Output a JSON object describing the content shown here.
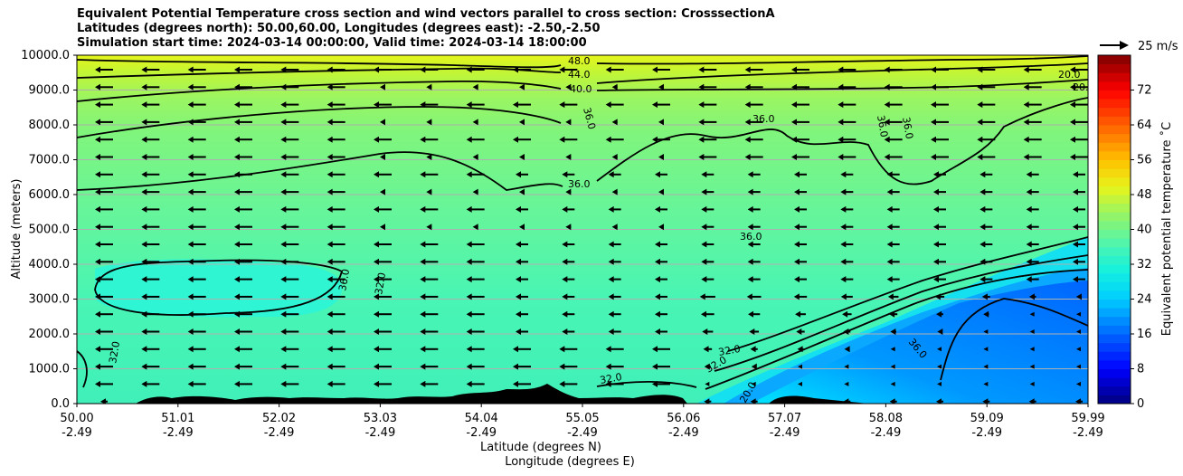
{
  "title_lines": [
    "Equivalent Potential Temperature cross section and wind vectors parallel to cross section: CrosssectionA",
    "Latitudes (degrees north): 50.00,60.00, Longitudes (degrees east): -2.50,-2.50",
    "Simulation start time: 2024-03-14 00:00:00, Valid time: 2024-03-14 18:00:00"
  ],
  "chart_data": {
    "type": "contour",
    "ylabel": "Altitude (meters)",
    "xlabel_lines": [
      "Latitude (degrees N)",
      "Longitude (degrees E)"
    ],
    "y_ticks": [
      "0.0",
      "1000.0",
      "2000.0",
      "3000.0",
      "4000.0",
      "5000.0",
      "6000.0",
      "7000.0",
      "8000.0",
      "9000.0",
      "10000.0"
    ],
    "ylim": [
      0,
      10000
    ],
    "x_ticks": [
      {
        "lat": "50.00",
        "lon": "-2.49"
      },
      {
        "lat": "51.01",
        "lon": "-2.49"
      },
      {
        "lat": "52.02",
        "lon": "-2.49"
      },
      {
        "lat": "53.03",
        "lon": "-2.49"
      },
      {
        "lat": "54.04",
        "lon": "-2.49"
      },
      {
        "lat": "55.05",
        "lon": "-2.49"
      },
      {
        "lat": "56.06",
        "lon": "-2.49"
      },
      {
        "lat": "57.07",
        "lon": "-2.49"
      },
      {
        "lat": "58.08",
        "lon": "-2.49"
      },
      {
        "lat": "59.09",
        "lon": "-2.49"
      },
      {
        "lat": "59.99",
        "lon": "-2.49"
      }
    ],
    "xlim": [
      50.0,
      59.99
    ],
    "grid": "horizontal",
    "colorbar": {
      "label": "Equivalent potential temperature ˚C",
      "ticks": [
        "0",
        "8",
        "16",
        "24",
        "32",
        "40",
        "48",
        "56",
        "64",
        "72"
      ],
      "range": [
        0,
        80
      ]
    },
    "quiver_key": "25 m/s",
    "contour_labels": [
      "48.0",
      "44.0",
      "40.0",
      "36.0",
      "36.0",
      "36.0",
      "36.0",
      "36.0",
      "36.0",
      "36.0",
      "32.0",
      "32.0",
      "32.0",
      "32.0",
      "32.0",
      "36.0",
      "20.0",
      "20.0",
      "20.0"
    ],
    "contour_levels": [
      48.0,
      44.0,
      40.0,
      36.0,
      32.0,
      28.0,
      24.0,
      20.0
    ]
  }
}
